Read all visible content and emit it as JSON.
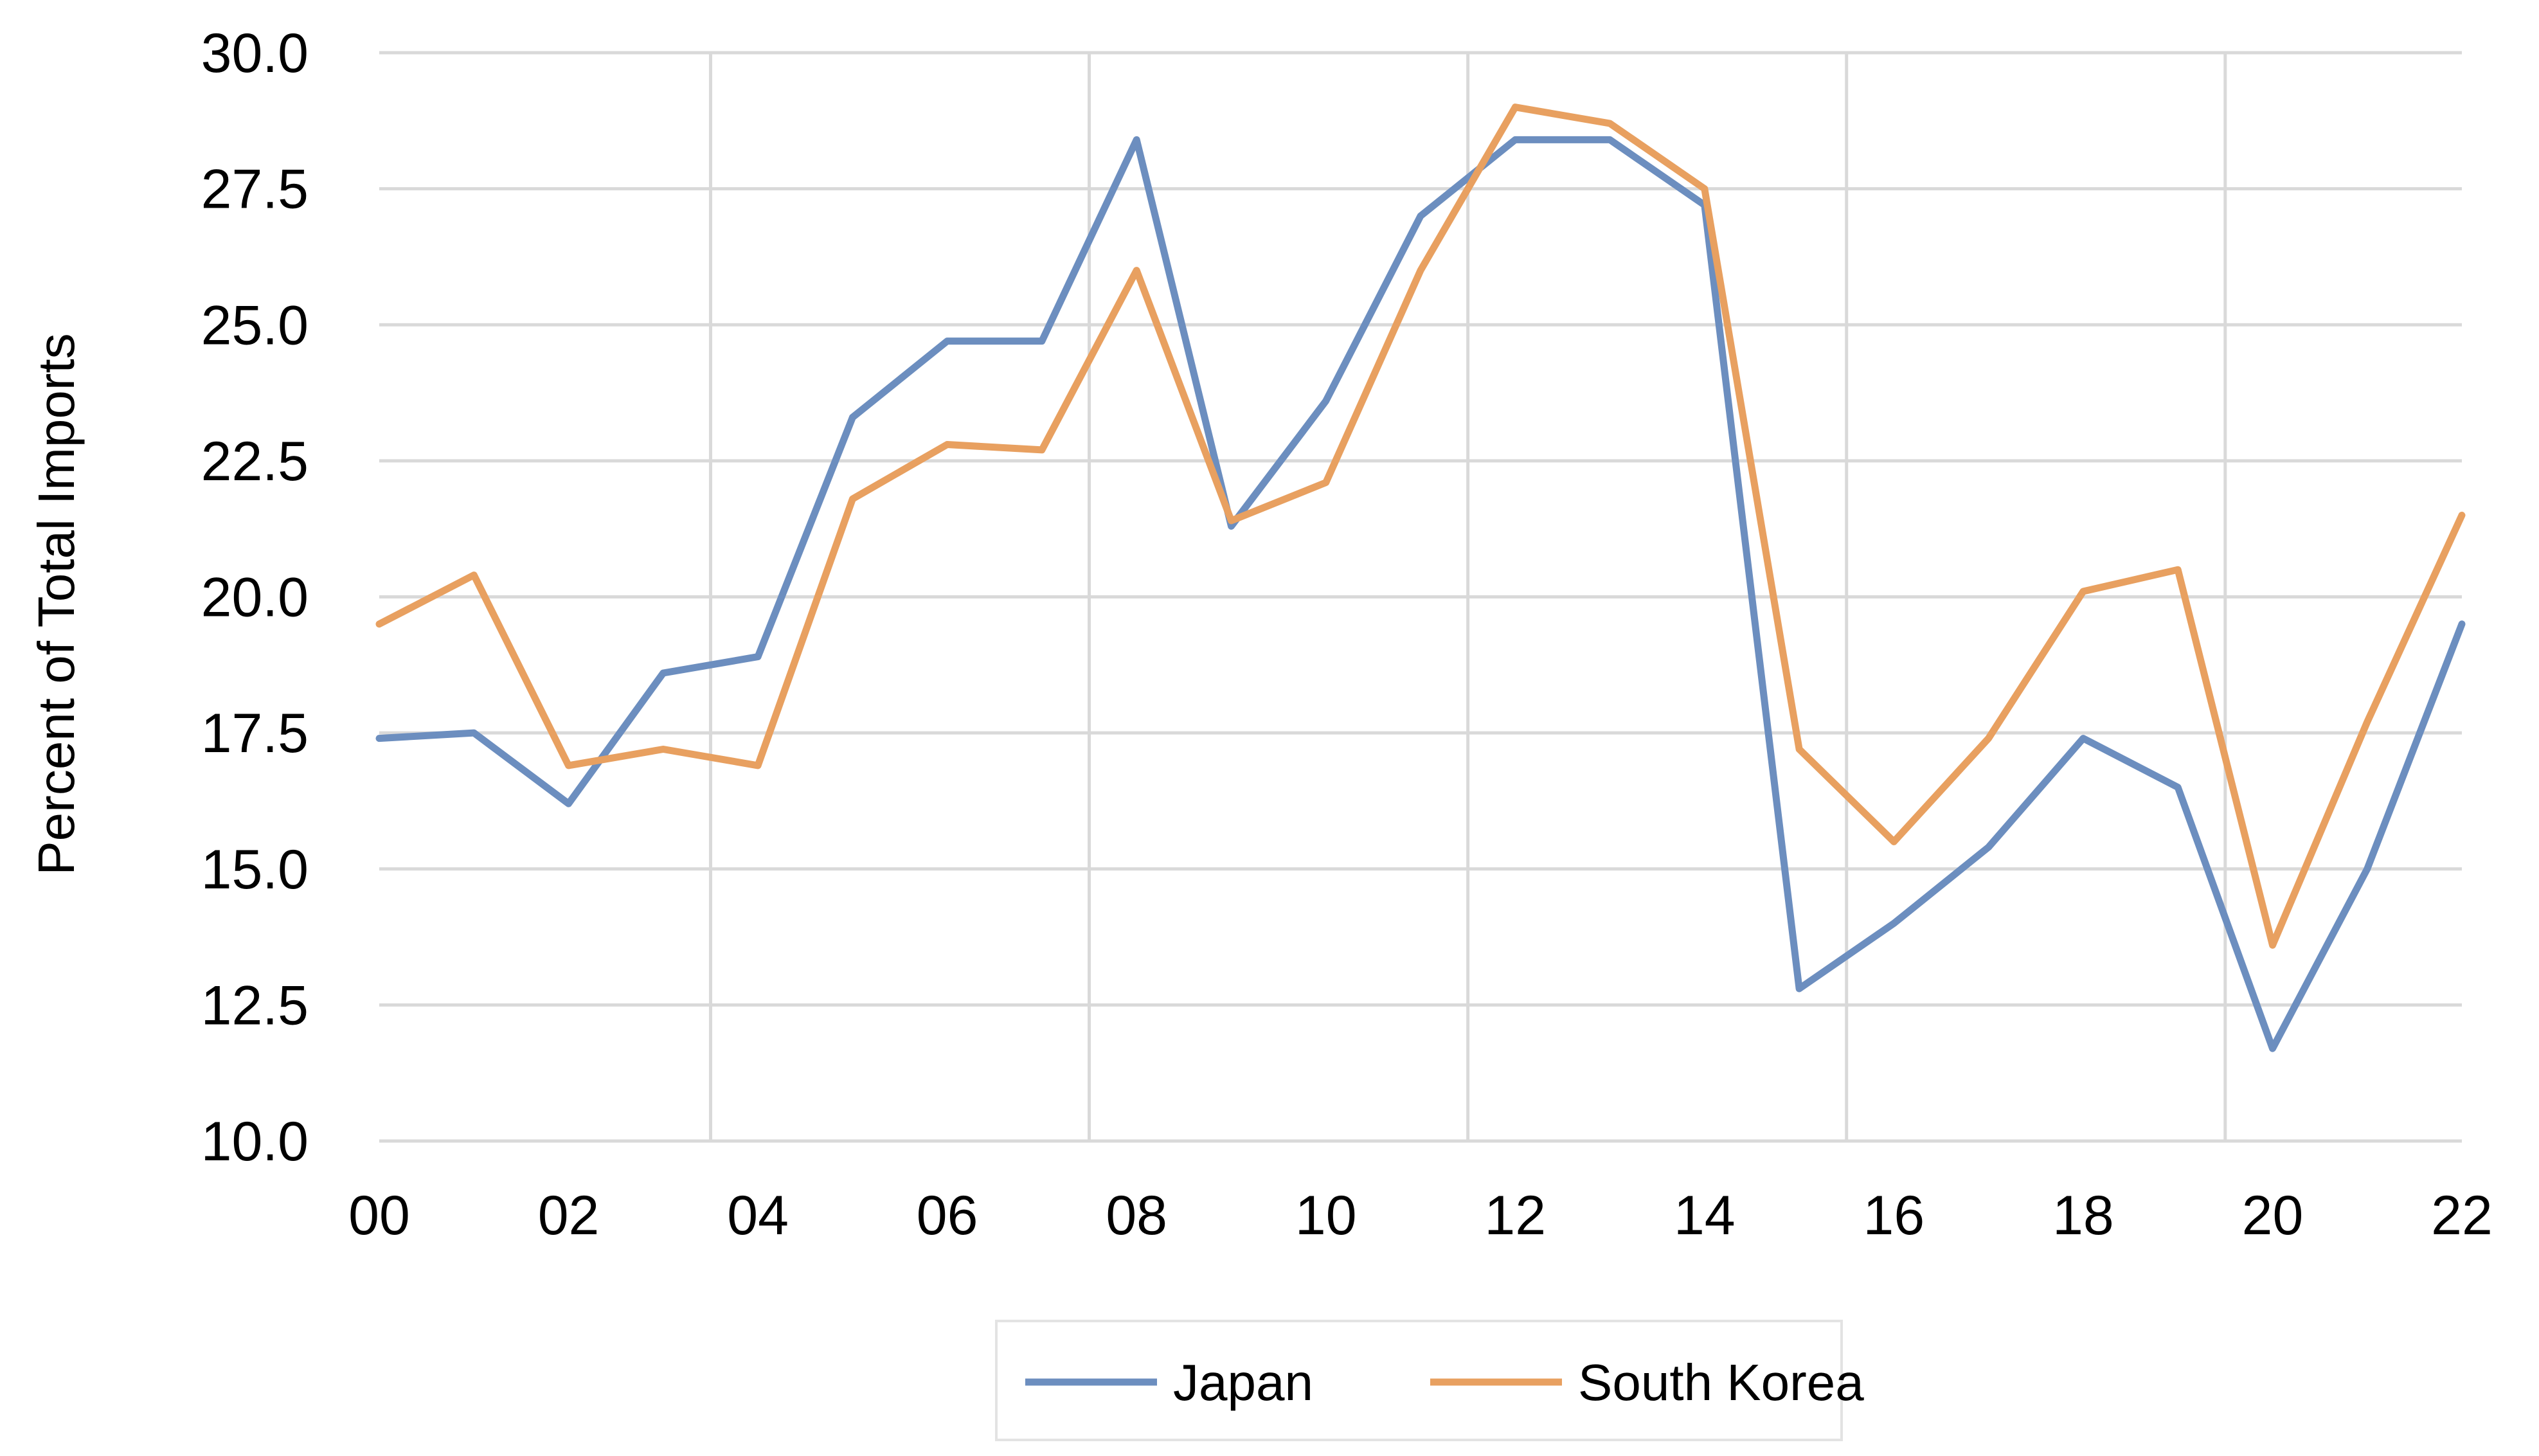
{
  "chart_data": {
    "type": "line",
    "title": "",
    "xlabel": "",
    "ylabel": "Percent of Total Imports",
    "categories": [
      "00",
      "01",
      "02",
      "03",
      "04",
      "05",
      "06",
      "07",
      "08",
      "09",
      "10",
      "11",
      "12",
      "13",
      "14",
      "15",
      "16",
      "17",
      "18",
      "19",
      "20",
      "21",
      "22"
    ],
    "x_tick_labels": [
      "00",
      "02",
      "04",
      "06",
      "08",
      "10",
      "12",
      "14",
      "16",
      "18",
      "20",
      "22"
    ],
    "y_tick_labels": [
      "10.0",
      "12.5",
      "15.0",
      "17.5",
      "20.0",
      "22.5",
      "25.0",
      "27.5",
      "30.0"
    ],
    "ylim": [
      10.0,
      30.0
    ],
    "grid": true,
    "legend_position": "bottom",
    "series": [
      {
        "name": "Japan",
        "color": "#6c8ebf",
        "values": [
          17.4,
          17.5,
          16.2,
          18.6,
          18.9,
          23.3,
          24.7,
          24.7,
          28.4,
          21.3,
          23.6,
          27.0,
          28.4,
          28.4,
          27.2,
          12.8,
          14.0,
          15.4,
          17.4,
          16.5,
          11.7,
          15.0,
          19.5
        ]
      },
      {
        "name": "South Korea",
        "color": "#e8a060",
        "values": [
          19.5,
          20.4,
          16.9,
          17.2,
          16.9,
          21.8,
          22.8,
          22.7,
          26.0,
          21.4,
          22.1,
          26.0,
          29.0,
          28.7,
          27.5,
          17.2,
          15.5,
          17.4,
          20.1,
          20.5,
          13.6,
          17.7,
          21.5
        ]
      }
    ]
  }
}
